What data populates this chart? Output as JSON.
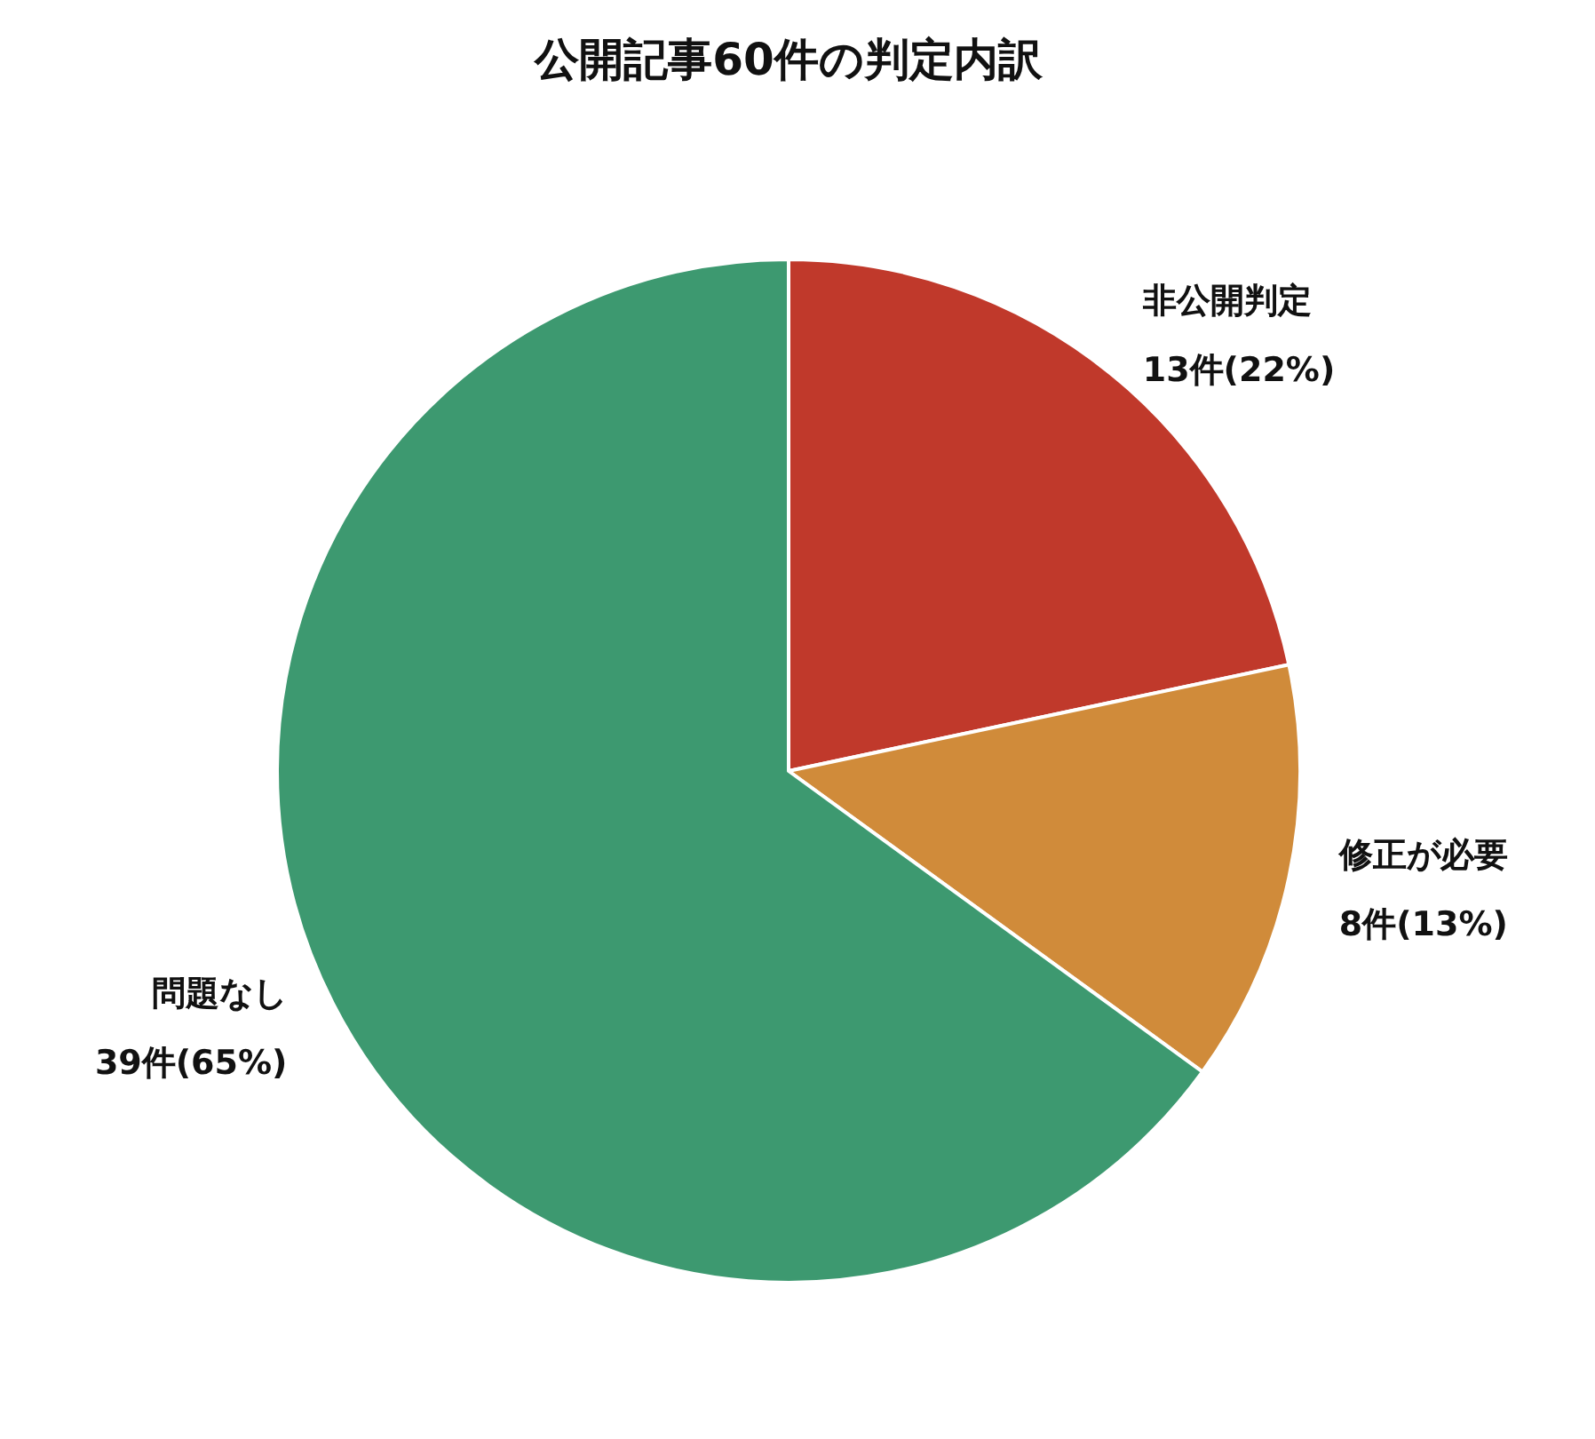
{
  "chart_data": {
    "type": "pie",
    "title": "公開記事60件の判定内訳",
    "categories": [
      "非公開判定",
      "修正が必要",
      "問題なし"
    ],
    "values": [
      13,
      8,
      39
    ],
    "value_labels": [
      "13件(22%)",
      "8件(13%)",
      "39件(65%)"
    ],
    "colors": [
      "#c0392b",
      "#d08b3a",
      "#3d9970"
    ],
    "legend": false
  }
}
